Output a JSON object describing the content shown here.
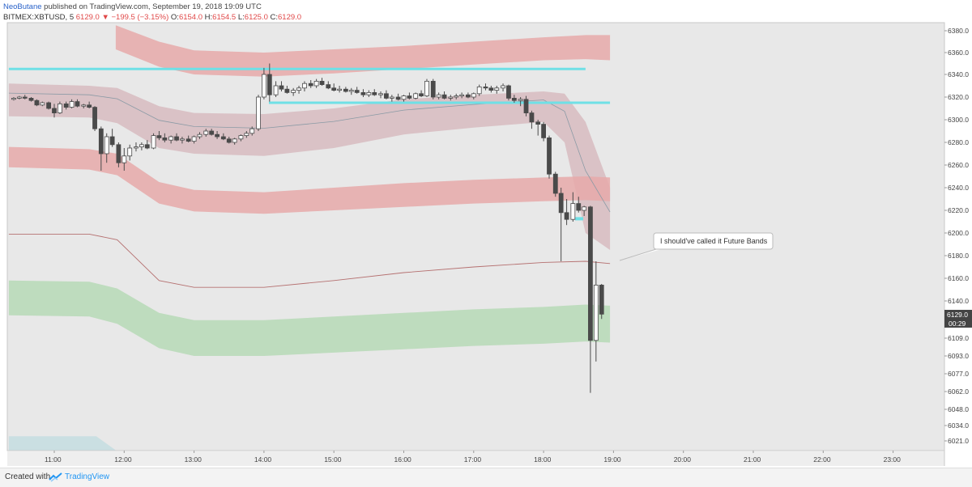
{
  "header": {
    "author": "NeoButane",
    "published_text": " published on TradingView.com, September 19, 2018 19:09 UTC",
    "symbol_text": "BITMEX:XBTUSD, 5",
    "last_price": "6129.0",
    "change_text": "▼ −199.5 (−3.15%)",
    "o_label": "O:",
    "o_value": "6154.0",
    "h_label": "H:",
    "h_value": "6154.5",
    "l_label": "L:",
    "l_value": "6125.0",
    "c_label": "C:",
    "c_value": "6129.0"
  },
  "price_tag": {
    "value": "6129.0",
    "countdown": "00:29"
  },
  "annotation": {
    "text": "I should've called it Future Bands"
  },
  "footer": {
    "created_with": "Created with",
    "brand": "TradingView"
  },
  "colors": {
    "up_candle": "#ffffff",
    "down_candle": "#4a4a4a",
    "wick": "#4a4a4a",
    "cyan_line": "#6fe0e6",
    "red_band": "#e6a9a9",
    "green_band": "#b6d9b6",
    "basis_line": "#b57070"
  },
  "chart_data": {
    "type": "candlestick",
    "title": "BITMEX:XBTUSD, 5",
    "y_tick_labels": [
      "6380.0",
      "6360.0",
      "6340.0",
      "6320.0",
      "6300.0",
      "6280.0",
      "6260.0",
      "6240.0",
      "6220.0",
      "6200.0",
      "6180.0",
      "6160.0",
      "6140.0",
      "6109.0",
      "6093.0",
      "6077.0",
      "6062.0",
      "6048.0",
      "6034.0",
      "6021.0"
    ],
    "x_tick_labels": [
      "11:00",
      "12:00",
      "13:00",
      "14:00",
      "15:00",
      "16:00",
      "17:00",
      "18:00",
      "19:00",
      "20:00",
      "21:00",
      "22:00",
      "23:00"
    ],
    "x_range_hours": [
      10.35,
      23.75
    ],
    "candle_interval_min": 5,
    "candles": [
      [
        10.42,
        6318,
        6320,
        6317,
        6319
      ],
      [
        10.5,
        6319,
        6321,
        6318,
        6320
      ],
      [
        10.58,
        6320,
        6322,
        6318,
        6319
      ],
      [
        10.67,
        6319,
        6320,
        6316,
        6317
      ],
      [
        10.75,
        6317,
        6318,
        6312,
        6313
      ],
      [
        10.83,
        6313,
        6316,
        6312,
        6315
      ],
      [
        10.92,
        6315,
        6316,
        6309,
        6310
      ],
      [
        11.0,
        6310,
        6314,
        6302,
        6306
      ],
      [
        11.08,
        6306,
        6316,
        6305,
        6314
      ],
      [
        11.17,
        6314,
        6316,
        6309,
        6311
      ],
      [
        11.25,
        6311,
        6318,
        6310,
        6316
      ],
      [
        11.33,
        6316,
        6318,
        6311,
        6312
      ],
      [
        11.42,
        6312,
        6314,
        6310,
        6313
      ],
      [
        11.5,
        6313,
        6316,
        6310,
        6311
      ],
      [
        11.58,
        6311,
        6312,
        6290,
        6292
      ],
      [
        11.67,
        6292,
        6294,
        6255,
        6270
      ],
      [
        11.75,
        6270,
        6288,
        6262,
        6285
      ],
      [
        11.83,
        6285,
        6292,
        6276,
        6278
      ],
      [
        11.92,
        6278,
        6280,
        6258,
        6262
      ],
      [
        12.0,
        6262,
        6275,
        6255,
        6268
      ],
      [
        12.08,
        6268,
        6278,
        6264,
        6275
      ],
      [
        12.17,
        6275,
        6280,
        6272,
        6276
      ],
      [
        12.25,
        6276,
        6280,
        6273,
        6278
      ],
      [
        12.33,
        6278,
        6282,
        6274,
        6275
      ],
      [
        12.42,
        6275,
        6288,
        6274,
        6286
      ],
      [
        12.5,
        6286,
        6290,
        6282,
        6284
      ],
      [
        12.58,
        6284,
        6288,
        6280,
        6282
      ],
      [
        12.67,
        6282,
        6286,
        6279,
        6285
      ],
      [
        12.75,
        6285,
        6288,
        6281,
        6282
      ],
      [
        12.83,
        6282,
        6285,
        6279,
        6283
      ],
      [
        12.92,
        6283,
        6286,
        6280,
        6281
      ],
      [
        13.0,
        6281,
        6286,
        6279,
        6285
      ],
      [
        13.08,
        6285,
        6289,
        6283,
        6287
      ],
      [
        13.17,
        6287,
        6292,
        6285,
        6290
      ],
      [
        13.25,
        6290,
        6292,
        6286,
        6287
      ],
      [
        13.33,
        6287,
        6290,
        6283,
        6285
      ],
      [
        13.42,
        6285,
        6288,
        6282,
        6283
      ],
      [
        13.5,
        6283,
        6285,
        6279,
        6280
      ],
      [
        13.58,
        6280,
        6284,
        6278,
        6283
      ],
      [
        13.67,
        6283,
        6287,
        6281,
        6286
      ],
      [
        13.75,
        6286,
        6290,
        6284,
        6288
      ],
      [
        13.83,
        6288,
        6294,
        6286,
        6292
      ],
      [
        13.92,
        6292,
        6322,
        6290,
        6320
      ],
      [
        14.0,
        6320,
        6346,
        6318,
        6340
      ],
      [
        14.08,
        6340,
        6350,
        6316,
        6322
      ],
      [
        14.17,
        6322,
        6334,
        6320,
        6330
      ],
      [
        14.25,
        6330,
        6334,
        6325,
        6327
      ],
      [
        14.33,
        6327,
        6330,
        6323,
        6324
      ],
      [
        14.42,
        6324,
        6328,
        6321,
        6326
      ],
      [
        14.5,
        6326,
        6330,
        6323,
        6328
      ],
      [
        14.58,
        6328,
        6334,
        6325,
        6332
      ],
      [
        14.67,
        6332,
        6335,
        6328,
        6330
      ],
      [
        14.75,
        6330,
        6336,
        6328,
        6334
      ],
      [
        14.83,
        6334,
        6337,
        6330,
        6331
      ],
      [
        14.92,
        6331,
        6334,
        6327,
        6328
      ],
      [
        15.0,
        6328,
        6332,
        6325,
        6326
      ],
      [
        15.08,
        6326,
        6330,
        6324,
        6327
      ],
      [
        15.17,
        6327,
        6329,
        6324,
        6325
      ],
      [
        15.25,
        6325,
        6328,
        6322,
        6326
      ],
      [
        15.33,
        6326,
        6329,
        6323,
        6324
      ],
      [
        15.42,
        6324,
        6327,
        6320,
        6322
      ],
      [
        15.5,
        6322,
        6326,
        6320,
        6324
      ],
      [
        15.58,
        6324,
        6327,
        6321,
        6322
      ],
      [
        15.67,
        6322,
        6325,
        6319,
        6323
      ],
      [
        15.75,
        6323,
        6326,
        6318,
        6319
      ],
      [
        15.83,
        6319,
        6322,
        6316,
        6320
      ],
      [
        15.92,
        6320,
        6323,
        6317,
        6318
      ],
      [
        16.0,
        6318,
        6322,
        6316,
        6321
      ],
      [
        16.08,
        6321,
        6324,
        6318,
        6319
      ],
      [
        16.17,
        6319,
        6324,
        6318,
        6323
      ],
      [
        16.25,
        6323,
        6326,
        6320,
        6321
      ],
      [
        16.33,
        6321,
        6336,
        6320,
        6334
      ],
      [
        16.42,
        6334,
        6336,
        6318,
        6320
      ],
      [
        16.5,
        6320,
        6324,
        6318,
        6322
      ],
      [
        16.58,
        6322,
        6325,
        6318,
        6319
      ],
      [
        16.67,
        6319,
        6322,
        6317,
        6320
      ],
      [
        16.75,
        6320,
        6323,
        6318,
        6321
      ],
      [
        16.83,
        6321,
        6324,
        6319,
        6322
      ],
      [
        16.92,
        6322,
        6324,
        6319,
        6320
      ],
      [
        17.0,
        6320,
        6324,
        6318,
        6323
      ],
      [
        17.08,
        6323,
        6331,
        6321,
        6329
      ],
      [
        17.17,
        6329,
        6332,
        6326,
        6328
      ],
      [
        17.25,
        6328,
        6330,
        6324,
        6326
      ],
      [
        17.33,
        6326,
        6330,
        6323,
        6328
      ],
      [
        17.42,
        6328,
        6332,
        6325,
        6330
      ],
      [
        17.5,
        6330,
        6331,
        6317,
        6319
      ],
      [
        17.58,
        6319,
        6322,
        6315,
        6317
      ],
      [
        17.67,
        6317,
        6320,
        6312,
        6318
      ],
      [
        17.75,
        6318,
        6321,
        6303,
        6306
      ],
      [
        17.83,
        6306,
        6308,
        6292,
        6298
      ],
      [
        17.92,
        6298,
        6300,
        6286,
        6296
      ],
      [
        18.0,
        6296,
        6298,
        6281,
        6284
      ],
      [
        18.08,
        6284,
        6286,
        6248,
        6252
      ],
      [
        18.17,
        6252,
        6254,
        6232,
        6235
      ],
      [
        18.25,
        6235,
        6240,
        6175,
        6218
      ],
      [
        18.33,
        6218,
        6230,
        6207,
        6212
      ],
      [
        18.42,
        6212,
        6236,
        6210,
        6226
      ],
      [
        18.5,
        6226,
        6232,
        6218,
        6220
      ],
      [
        18.58,
        6220,
        6224,
        6215,
        6223
      ],
      [
        18.67,
        6223,
        6224,
        6061,
        6107
      ],
      [
        18.75,
        6107,
        6175,
        6088,
        6154
      ],
      [
        18.83,
        6154,
        6155,
        6125,
        6129
      ]
    ],
    "resistance_lines": [
      {
        "x_start_hours": 10.35,
        "x_end_hours": 18.6,
        "value": 6345
      },
      {
        "x_start_hours": 14.07,
        "x_end_hours": 18.95,
        "value": 6315
      }
    ],
    "basis_line": [
      [
        10.35,
        6199
      ],
      [
        11.5,
        6199
      ],
      [
        11.9,
        6194
      ],
      [
        12.5,
        6158
      ],
      [
        13.0,
        6152
      ],
      [
        14.0,
        6152
      ],
      [
        15.0,
        6158
      ],
      [
        16.0,
        6165
      ],
      [
        17.0,
        6170
      ],
      [
        18.0,
        6174
      ],
      [
        18.6,
        6175
      ],
      [
        18.95,
        6173
      ]
    ],
    "bands": [
      {
        "name": "upper red band",
        "color": "#e6a9a9",
        "x": [
          11.88,
          12.5,
          13.0,
          14.0,
          15.0,
          16.0,
          17.0,
          18.0,
          18.6,
          18.95
        ],
        "upper": [
          6385,
          6370,
          6362,
          6360,
          6363,
          6366,
          6370,
          6374,
          6376,
          6376
        ],
        "lower": [
          6363,
          6347,
          6340,
          6338,
          6341,
          6345,
          6349,
          6353,
          6354,
          6353
        ]
      },
      {
        "name": "middle band",
        "color": "#d6b6bb",
        "x": [
          10.35,
          11.5,
          11.9,
          12.5,
          13.0,
          14.0,
          15.0,
          16.0,
          17.0,
          18.0,
          18.3,
          18.6,
          18.95
        ],
        "upper": [
          6332,
          6330,
          6328,
          6312,
          6306,
          6305,
          6310,
          6318,
          6322,
          6325,
          6323,
          6298,
          6240
        ],
        "lower": [
          6303,
          6302,
          6297,
          6275,
          6270,
          6268,
          6275,
          6287,
          6293,
          6298,
          6280,
          6200,
          6185
        ]
      },
      {
        "name": "lower red band",
        "color": "#e6a9a9",
        "x": [
          10.35,
          11.5,
          11.9,
          12.5,
          13.0,
          14.0,
          15.0,
          16.0,
          17.0,
          18.0,
          18.6,
          18.95
        ],
        "upper": [
          6276,
          6274,
          6270,
          6245,
          6238,
          6236,
          6240,
          6244,
          6247,
          6249,
          6250,
          6249
        ],
        "lower": [
          6258,
          6256,
          6251,
          6226,
          6219,
          6217,
          6220,
          6223,
          6226,
          6228,
          6229,
          6228
        ]
      },
      {
        "name": "green band",
        "color": "#b6d9b6",
        "x": [
          10.35,
          11.5,
          11.9,
          12.5,
          13.0,
          14.0,
          15.0,
          16.0,
          17.0,
          18.0,
          18.6,
          18.95
        ],
        "upper": [
          6158,
          6157,
          6151,
          6130,
          6124,
          6124,
          6127,
          6130,
          6133,
          6135,
          6137,
          6136
        ],
        "lower": [
          6128,
          6127,
          6121,
          6100,
          6093,
          6093,
          6096,
          6099,
          6102,
          6104,
          6106,
          6105
        ]
      },
      {
        "name": "lower blue band",
        "color": "#c4dde1",
        "x": [
          10.35,
          11.6,
          11.9
        ],
        "upper": [
          6025,
          6025,
          6012
        ],
        "lower": [
          6010,
          6010,
          6010
        ]
      }
    ]
  }
}
